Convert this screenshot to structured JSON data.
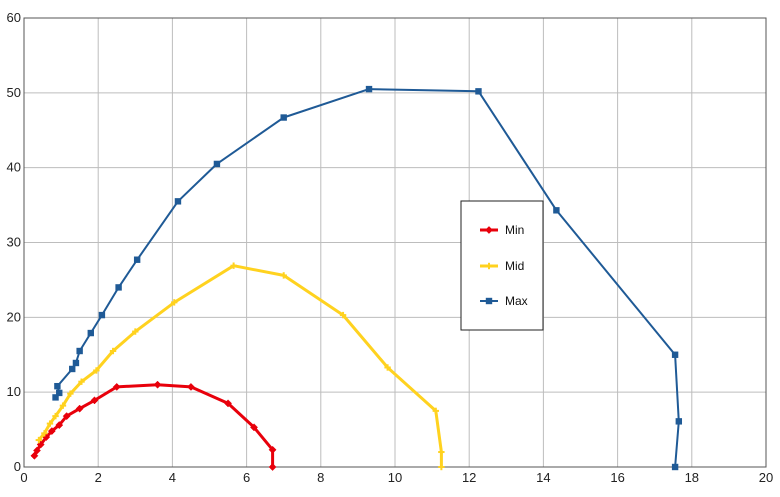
{
  "chart_data": {
    "type": "scatter",
    "title": "",
    "xlabel": "",
    "ylabel": "",
    "xlim": [
      0,
      20
    ],
    "ylim": [
      0,
      60
    ],
    "x_ticks": [
      "0",
      "2",
      "4",
      "6",
      "8",
      "10",
      "12",
      "14",
      "16",
      "18",
      "20"
    ],
    "y_ticks": [
      "0",
      "10",
      "20",
      "30",
      "40",
      "50",
      "60"
    ],
    "grid": true,
    "legend_position": "right",
    "series": [
      {
        "name": "Min",
        "color": "#e8000b",
        "marker": "diamond",
        "points": [
          [
            0.28,
            1.5
          ],
          [
            0.35,
            2.2
          ],
          [
            0.45,
            3.0
          ],
          [
            0.6,
            4.0
          ],
          [
            0.75,
            4.8
          ],
          [
            0.95,
            5.6
          ],
          [
            1.15,
            6.8
          ],
          [
            1.5,
            7.8
          ],
          [
            1.9,
            8.9
          ],
          [
            2.5,
            10.7
          ],
          [
            3.6,
            11.0
          ],
          [
            4.5,
            10.7
          ],
          [
            5.5,
            8.5
          ],
          [
            6.2,
            5.3
          ],
          [
            6.7,
            2.3
          ],
          [
            6.7,
            0.0
          ]
        ]
      },
      {
        "name": "Mid",
        "color": "#ffd21f",
        "marker": "plus",
        "points": [
          [
            0.4,
            3.6
          ],
          [
            0.55,
            4.5
          ],
          [
            0.7,
            5.8
          ],
          [
            0.85,
            6.8
          ],
          [
            1.05,
            8.2
          ],
          [
            1.25,
            9.8
          ],
          [
            1.55,
            11.4
          ],
          [
            1.95,
            12.9
          ],
          [
            2.4,
            15.5
          ],
          [
            3.0,
            18.1
          ],
          [
            4.05,
            22.0
          ],
          [
            5.65,
            26.9
          ],
          [
            7.0,
            25.6
          ],
          [
            8.6,
            20.3
          ],
          [
            9.8,
            13.3
          ],
          [
            11.1,
            7.5
          ],
          [
            11.25,
            2.0
          ],
          [
            11.25,
            0.0
          ]
        ]
      },
      {
        "name": "Max",
        "color": "#1f5a96",
        "marker": "square",
        "points": [
          [
            0.85,
            9.3
          ],
          [
            0.95,
            9.9
          ],
          [
            0.9,
            10.8
          ],
          [
            1.3,
            13.1
          ],
          [
            1.4,
            13.9
          ],
          [
            1.5,
            15.5
          ],
          [
            1.8,
            17.9
          ],
          [
            2.1,
            20.3
          ],
          [
            2.55,
            24.0
          ],
          [
            3.05,
            27.7
          ],
          [
            4.15,
            35.5
          ],
          [
            5.2,
            40.5
          ],
          [
            7.0,
            46.7
          ],
          [
            9.3,
            50.5
          ],
          [
            12.25,
            50.2
          ],
          [
            14.35,
            34.3
          ],
          [
            17.55,
            15.0
          ],
          [
            17.65,
            6.1
          ],
          [
            17.55,
            0.0
          ]
        ]
      }
    ]
  }
}
